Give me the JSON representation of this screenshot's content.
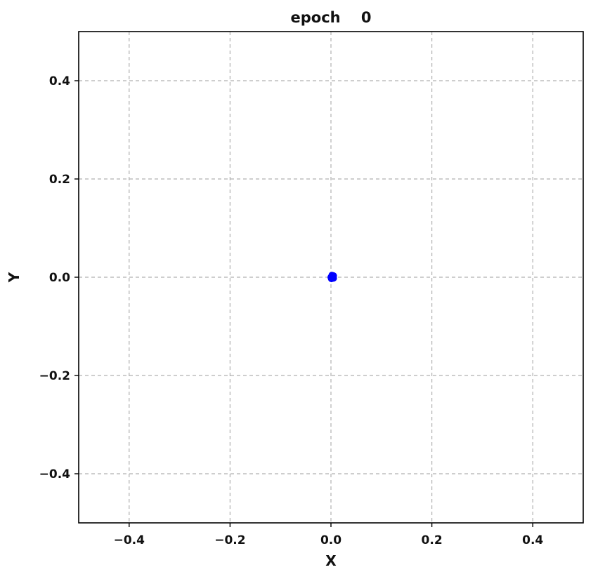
{
  "chart_data": {
    "type": "scatter",
    "title": "epoch    0",
    "xlabel": "X",
    "ylabel": "Y",
    "xlim": [
      -0.5,
      0.5
    ],
    "ylim": [
      -0.5,
      0.5
    ],
    "xticks": [
      -0.4,
      -0.2,
      0.0,
      0.2,
      0.4
    ],
    "yticks": [
      -0.4,
      -0.2,
      0.0,
      0.2,
      0.4
    ],
    "xtick_labels": [
      "−0.4",
      "−0.2",
      "0.0",
      "0.2",
      "0.4"
    ],
    "ytick_labels": [
      "−0.4",
      "−0.2",
      "0.0",
      "0.2",
      "0.4"
    ],
    "grid": true,
    "series": [
      {
        "color": "#0000ff",
        "x": [
          0.0,
          0.003,
          0.005,
          0.002,
          0.004,
          0.001,
          0.005,
          0.003
        ],
        "y": [
          0.0,
          0.002,
          -0.002,
          0.004,
          0.0,
          -0.003,
          0.003,
          -0.001
        ]
      }
    ]
  }
}
